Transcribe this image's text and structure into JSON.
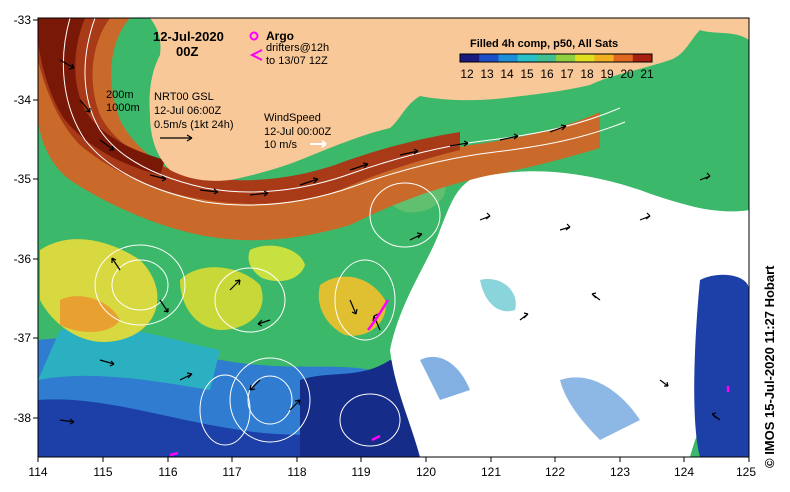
{
  "title": {
    "date": "12-Jul-2020",
    "time": "00Z"
  },
  "legend": {
    "argo_label": "Argo",
    "drifters_line1": "drifters@12h",
    "drifters_line2": "to 13/07 12Z",
    "colorbar_title": "Filled 4h comp, p50, All Sats",
    "colorbar_ticks": [
      "12",
      "13",
      "14",
      "15",
      "16",
      "17",
      "18",
      "19",
      "20",
      "21"
    ],
    "colorbar_colors": [
      "#1a1a80",
      "#1f4fc8",
      "#1c8fd8",
      "#2bc0c8",
      "#40c090",
      "#90d040",
      "#e0e020",
      "#f0b020",
      "#e06820",
      "#a82010"
    ]
  },
  "annotations": {
    "contours_line1": "200m",
    "contours_line2": "1000m",
    "gsl_line1": "NRT00 GSL",
    "gsl_line2": "12-Jul 06:00Z",
    "gsl_line3": "0.5m/s (1kt 24h)",
    "wind_line1": "WindSpeed",
    "wind_line2": "12-Jul 00:00Z",
    "wind_line3": "10 m/s"
  },
  "axes": {
    "x_ticks": [
      "114",
      "115",
      "116",
      "117",
      "118",
      "119",
      "120",
      "121",
      "122",
      "123",
      "124",
      "125"
    ],
    "y_ticks": [
      "-33",
      "-34",
      "-35",
      "-36",
      "-37",
      "-38"
    ]
  },
  "credit": "© IMOS 15-Jul-2020 11:27 Hobart",
  "colors": {
    "land": "#f8c898",
    "argo": "#ff00ff"
  }
}
